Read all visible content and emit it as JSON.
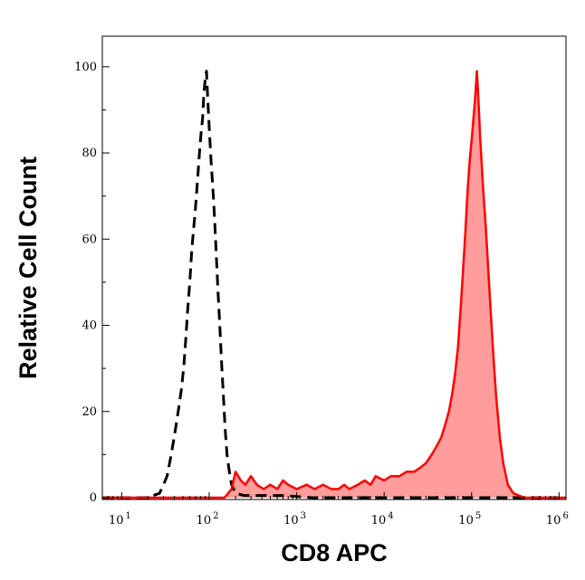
{
  "chart_data": {
    "type": "area",
    "title": "",
    "xlabel": "CD8 APC",
    "ylabel": "Relative Cell Count",
    "x_scale": "log10",
    "xlim": [
      6,
      1200000
    ],
    "ylim": [
      0,
      105
    ],
    "x_ticks": [
      {
        "base": "10",
        "exp": "1",
        "value": 10
      },
      {
        "base": "10",
        "exp": "2",
        "value": 100
      },
      {
        "base": "10",
        "exp": "3",
        "value": 1000
      },
      {
        "base": "10",
        "exp": "4",
        "value": 10000
      },
      {
        "base": "10",
        "exp": "5",
        "value": 100000
      },
      {
        "base": "10",
        "exp": "6",
        "value": 1000000
      }
    ],
    "y_ticks": [
      "0",
      "20",
      "40",
      "60",
      "80",
      "100"
    ],
    "grid": false,
    "series": [
      {
        "style": "dashed",
        "color": "#000000",
        "fill": "none",
        "points": [
          [
            6,
            0
          ],
          [
            15,
            0
          ],
          [
            20,
            0
          ],
          [
            23,
            0.5
          ],
          [
            27,
            1
          ],
          [
            30,
            3
          ],
          [
            33,
            5
          ],
          [
            36,
            9
          ],
          [
            39,
            13
          ],
          [
            42,
            17
          ],
          [
            45,
            21
          ],
          [
            48,
            25
          ],
          [
            51,
            30
          ],
          [
            54,
            37
          ],
          [
            57,
            44
          ],
          [
            60,
            50
          ],
          [
            63,
            57
          ],
          [
            66,
            62
          ],
          [
            69,
            66
          ],
          [
            72,
            71
          ],
          [
            75,
            76
          ],
          [
            78,
            81
          ],
          [
            81,
            85
          ],
          [
            84,
            88
          ],
          [
            87,
            94
          ],
          [
            90,
            97
          ],
          [
            93,
            99
          ],
          [
            96,
            93
          ],
          [
            100,
            86
          ],
          [
            105,
            78
          ],
          [
            110,
            72
          ],
          [
            115,
            65
          ],
          [
            120,
            57
          ],
          [
            126,
            48
          ],
          [
            132,
            40
          ],
          [
            138,
            32
          ],
          [
            145,
            24
          ],
          [
            152,
            16
          ],
          [
            160,
            10
          ],
          [
            170,
            6
          ],
          [
            180,
            3
          ],
          [
            200,
            1
          ],
          [
            250,
            0.5
          ],
          [
            400,
            0.5
          ],
          [
            700,
            0.5
          ],
          [
            1500,
            0
          ],
          [
            5000,
            0
          ],
          [
            20000,
            0
          ],
          [
            100000,
            0
          ],
          [
            1200000,
            0
          ]
        ]
      },
      {
        "style": "solid",
        "color": "#ff0000",
        "fill": "#ff9c9c",
        "points": [
          [
            6,
            0
          ],
          [
            100,
            0
          ],
          [
            150,
            0
          ],
          [
            180,
            2
          ],
          [
            200,
            6
          ],
          [
            230,
            4
          ],
          [
            260,
            3
          ],
          [
            300,
            5
          ],
          [
            350,
            3
          ],
          [
            420,
            2
          ],
          [
            500,
            3
          ],
          [
            600,
            2
          ],
          [
            700,
            4
          ],
          [
            800,
            3
          ],
          [
            1000,
            2
          ],
          [
            1300,
            3
          ],
          [
            1600,
            2
          ],
          [
            2000,
            3
          ],
          [
            2500,
            2
          ],
          [
            3000,
            2
          ],
          [
            3500,
            3
          ],
          [
            4000,
            2
          ],
          [
            5000,
            3
          ],
          [
            6000,
            4
          ],
          [
            7000,
            3
          ],
          [
            8000,
            5
          ],
          [
            10000,
            4
          ],
          [
            12000,
            5
          ],
          [
            15000,
            5
          ],
          [
            18000,
            6
          ],
          [
            22000,
            6
          ],
          [
            26000,
            7
          ],
          [
            30000,
            8
          ],
          [
            35000,
            10
          ],
          [
            40000,
            12
          ],
          [
            45000,
            14
          ],
          [
            50000,
            17
          ],
          [
            55000,
            20
          ],
          [
            60000,
            24
          ],
          [
            65000,
            29
          ],
          [
            70000,
            35
          ],
          [
            75000,
            44
          ],
          [
            80000,
            53
          ],
          [
            85000,
            62
          ],
          [
            90000,
            71
          ],
          [
            95000,
            78
          ],
          [
            100000,
            83
          ],
          [
            105000,
            88
          ],
          [
            110000,
            93
          ],
          [
            115000,
            99
          ],
          [
            120000,
            92
          ],
          [
            125000,
            84
          ],
          [
            135000,
            72
          ],
          [
            145000,
            63
          ],
          [
            160000,
            48
          ],
          [
            175000,
            35
          ],
          [
            190000,
            24
          ],
          [
            210000,
            14
          ],
          [
            230000,
            8
          ],
          [
            260000,
            3
          ],
          [
            300000,
            1
          ],
          [
            400000,
            0
          ],
          [
            1200000,
            0
          ]
        ]
      }
    ]
  }
}
